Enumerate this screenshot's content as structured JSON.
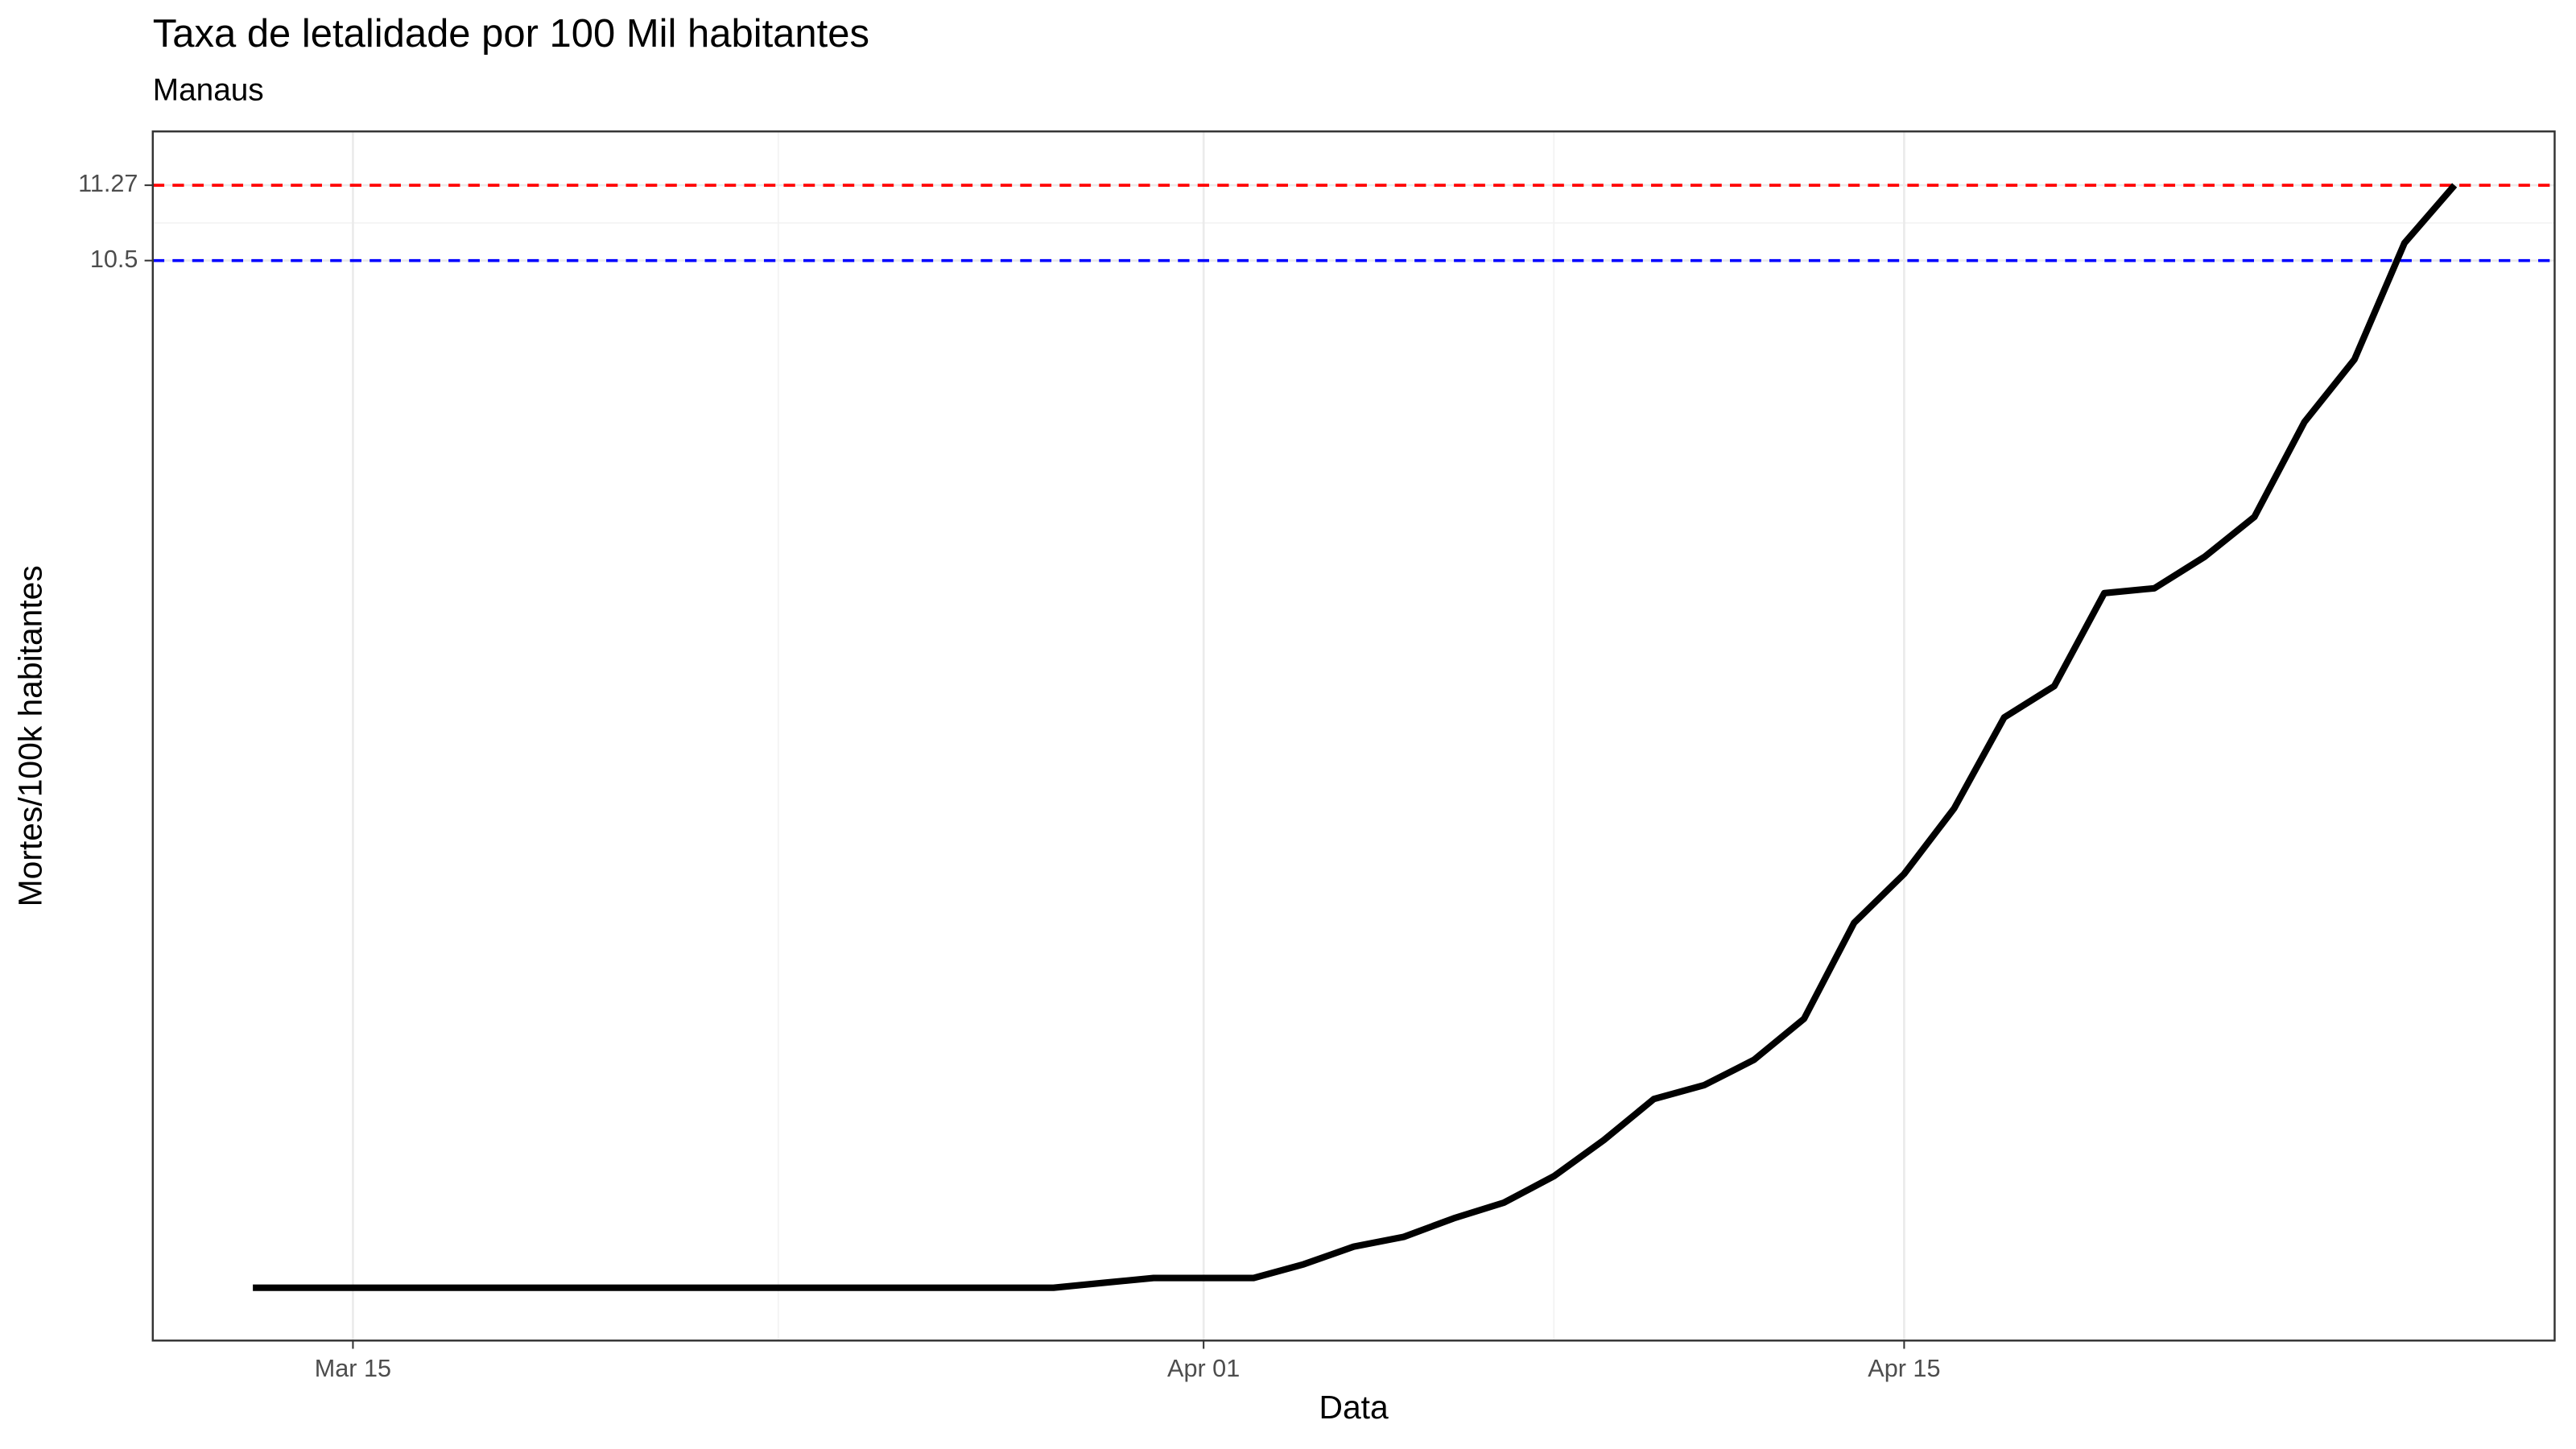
{
  "chart_data": {
    "type": "line",
    "title": "Taxa de letalidade por 100 Mil habitantes",
    "subtitle": "Manaus",
    "x_label": "Data",
    "y_label": "Mortes/100k habitantes",
    "x": [
      "Mar 13",
      "Mar 14",
      "Mar 15",
      "Mar 16",
      "Mar 17",
      "Mar 18",
      "Mar 19",
      "Mar 20",
      "Mar 21",
      "Mar 22",
      "Mar 23",
      "Mar 24",
      "Mar 25",
      "Mar 26",
      "Mar 27",
      "Mar 28",
      "Mar 29",
      "Mar 30",
      "Mar 31",
      "Apr 01",
      "Apr 02",
      "Apr 03",
      "Apr 04",
      "Apr 05",
      "Apr 06",
      "Apr 07",
      "Apr 08",
      "Apr 09",
      "Apr 10",
      "Apr 11",
      "Apr 12",
      "Apr 13",
      "Apr 14",
      "Apr 15",
      "Apr 16",
      "Apr 17",
      "Apr 18",
      "Apr 19",
      "Apr 20",
      "Apr 21",
      "Apr 22",
      "Apr 23",
      "Apr 24",
      "Apr 25",
      "Apr 26"
    ],
    "series": [
      {
        "color": "#000000",
        "values": [
          0,
          0,
          0,
          0,
          0,
          0,
          0,
          0,
          0,
          0,
          0,
          0,
          0,
          0,
          0,
          0,
          0,
          0.05,
          0.1,
          0.1,
          0.1,
          0.24,
          0.42,
          0.52,
          0.71,
          0.87,
          1.14,
          1.51,
          1.93,
          2.07,
          2.33,
          2.75,
          3.73,
          4.23,
          4.9,
          5.83,
          6.15,
          7.1,
          7.15,
          7.47,
          7.88,
          8.85,
          9.49,
          10.68,
          11.27
        ]
      }
    ],
    "xlim": [
      "Mar 11",
      "Apr 28"
    ],
    "xticks": [
      "Mar 15",
      "Apr 01",
      "Apr 15"
    ],
    "ylim": [
      -0.54,
      11.82
    ],
    "yticks": [
      10.5,
      11.27
    ],
    "hlines": [
      {
        "value": 11.27,
        "color": "#ff0000"
      },
      {
        "value": 10.5,
        "color": "#0000ff"
      }
    ],
    "grid": true
  }
}
